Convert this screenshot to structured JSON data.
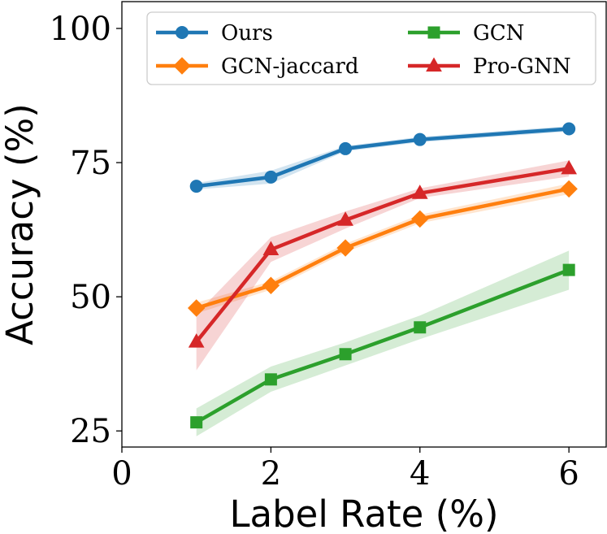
{
  "chart_data": {
    "type": "line",
    "xlabel": "Label Rate (%)",
    "ylabel": "Accuracy (%)",
    "xlim": [
      0,
      6.5
    ],
    "ylim": [
      22,
      105
    ],
    "xticks": [
      0,
      2,
      4,
      6
    ],
    "yticks": [
      25,
      50,
      75,
      100
    ],
    "x": [
      1,
      2,
      3,
      4,
      6
    ],
    "legend": {
      "placement": "top",
      "columns": 2
    },
    "series": [
      {
        "name": "Ours",
        "color": "#1f77b4",
        "marker": "circle",
        "values": [
          70.6,
          72.3,
          77.6,
          79.3,
          81.3
        ],
        "band_low": [
          70.0,
          71.1,
          77.1,
          78.8,
          80.8
        ],
        "band_high": [
          71.2,
          73.5,
          78.1,
          79.8,
          81.8
        ]
      },
      {
        "name": "GCN-jaccard",
        "color": "#ff7f0e",
        "marker": "diamond",
        "values": [
          47.9,
          52.1,
          59.1,
          64.5,
          70.1
        ],
        "band_low": [
          46.9,
          51.3,
          58.3,
          63.7,
          69.1
        ],
        "band_high": [
          48.9,
          52.9,
          59.9,
          65.3,
          71.1
        ]
      },
      {
        "name": "GCN",
        "color": "#2ca02c",
        "marker": "square",
        "values": [
          26.6,
          34.6,
          39.3,
          44.3,
          55.0
        ],
        "band_low": [
          24.0,
          32.3,
          37.2,
          42.1,
          51.3
        ],
        "band_high": [
          29.2,
          37.0,
          41.5,
          46.5,
          58.6
        ]
      },
      {
        "name": "Pro-GNN",
        "color": "#d62728",
        "marker": "triangle",
        "values": [
          41.6,
          58.8,
          64.3,
          69.3,
          73.9
        ],
        "band_low": [
          36.3,
          56.5,
          62.7,
          68.4,
          72.4
        ],
        "band_high": [
          46.8,
          61.1,
          65.9,
          70.2,
          75.4
        ]
      }
    ]
  }
}
